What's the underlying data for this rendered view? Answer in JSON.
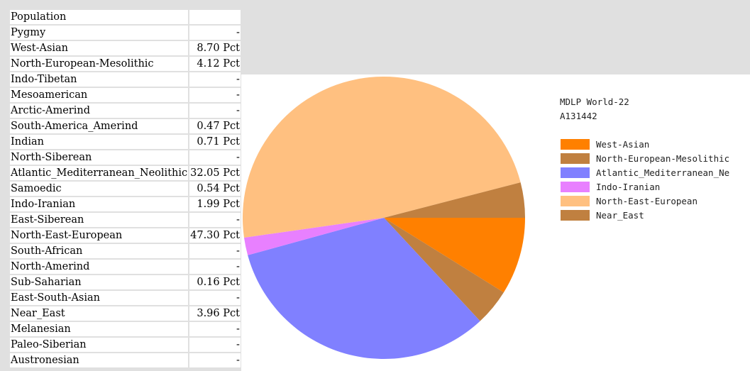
{
  "table": {
    "header": "Population",
    "rows": [
      {
        "name": "Pygmy",
        "value": "-"
      },
      {
        "name": "West-Asian",
        "value": "8.70 Pct"
      },
      {
        "name": "North-European-Mesolithic",
        "value": "4.12 Pct"
      },
      {
        "name": "Indo-Tibetan",
        "value": "-"
      },
      {
        "name": "Mesoamerican",
        "value": "-"
      },
      {
        "name": "Arctic-Amerind",
        "value": "-"
      },
      {
        "name": "South-America_Amerind",
        "value": "0.47 Pct"
      },
      {
        "name": "Indian",
        "value": "0.71 Pct"
      },
      {
        "name": "North-Siberean",
        "value": "-"
      },
      {
        "name": "Atlantic_Mediterranean_Neolithic",
        "value": "32.05 Pct"
      },
      {
        "name": "Samoedic",
        "value": "0.54 Pct"
      },
      {
        "name": "Indo-Iranian",
        "value": "1.99 Pct"
      },
      {
        "name": "East-Siberean",
        "value": "-"
      },
      {
        "name": "North-East-European",
        "value": "47.30 Pct"
      },
      {
        "name": "South-African",
        "value": "-"
      },
      {
        "name": "North-Amerind",
        "value": "-"
      },
      {
        "name": "Sub-Saharian",
        "value": "0.16 Pct"
      },
      {
        "name": "East-South-Asian",
        "value": "-"
      },
      {
        "name": "Near_East",
        "value": "3.96 Pct"
      },
      {
        "name": "Melanesian",
        "value": "-"
      },
      {
        "name": "Paleo-Siberian",
        "value": "-"
      },
      {
        "name": "Austronesian",
        "value": "-"
      }
    ]
  },
  "chart_data": {
    "type": "pie",
    "title": "MDLP World-22",
    "subtitle": "A131442",
    "legend_position": "right",
    "slices": [
      {
        "label": "West-Asian",
        "value": 8.7,
        "color": "#ff8000"
      },
      {
        "label": "North-European-Mesolithic",
        "value": 4.12,
        "color": "#c08040"
      },
      {
        "label": "Atlantic_Mediterranean_Ne",
        "value": 32.05,
        "color": "#8080ff"
      },
      {
        "label": "Indo-Iranian",
        "value": 1.99,
        "color": "#e880ff"
      },
      {
        "label": "North-East-European",
        "value": 47.3,
        "color": "#ffc080"
      },
      {
        "label": "Near_East",
        "value": 3.96,
        "color": "#c08040"
      }
    ]
  }
}
